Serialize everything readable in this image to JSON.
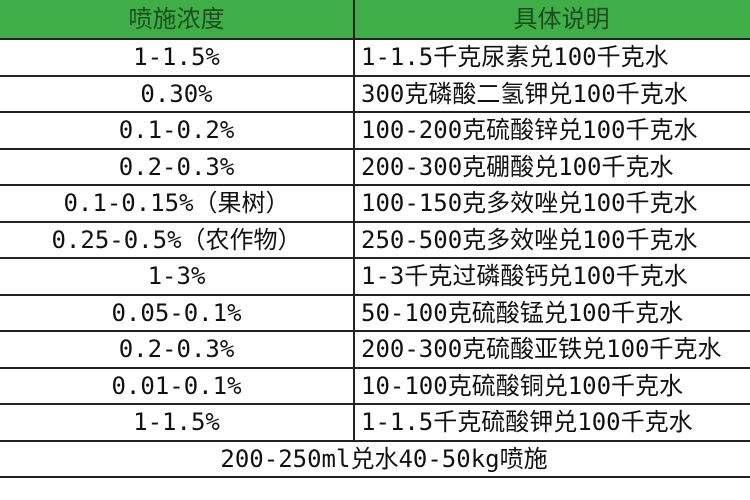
{
  "table": {
    "headers": [
      "喷施浓度",
      "具体说明"
    ],
    "header_color": "#3fae49",
    "rows": [
      [
        "1-1.5%",
        "1-1.5千克尿素兑100千克水"
      ],
      [
        "0.30%",
        "300克磷酸二氢钾兑100千克水"
      ],
      [
        "0.1-0.2%",
        "100-200克硫酸锌兑100千克水"
      ],
      [
        "0.2-0.3%",
        "200-300克硼酸兑100千克水"
      ],
      [
        "0.1-0.15%（果树）",
        "100-150克多效唑兑100千克水"
      ],
      [
        "0.25-0.5%（农作物）",
        "250-500克多效唑兑100千克水"
      ],
      [
        "1-3%",
        "1-3千克过磷酸钙兑100千克水"
      ],
      [
        "0.05-0.1%",
        "50-100克硫酸锰兑100千克水"
      ],
      [
        "0.2-0.3%",
        "200-300克硫酸亚铁兑100千克水"
      ],
      [
        "0.01-0.1%",
        "10-100克硫酸铜兑100千克水"
      ],
      [
        "1-1.5%",
        "1-1.5千克硫酸钾兑100千克水"
      ]
    ],
    "footer": "200-250ml兑水40-50kg喷施"
  }
}
